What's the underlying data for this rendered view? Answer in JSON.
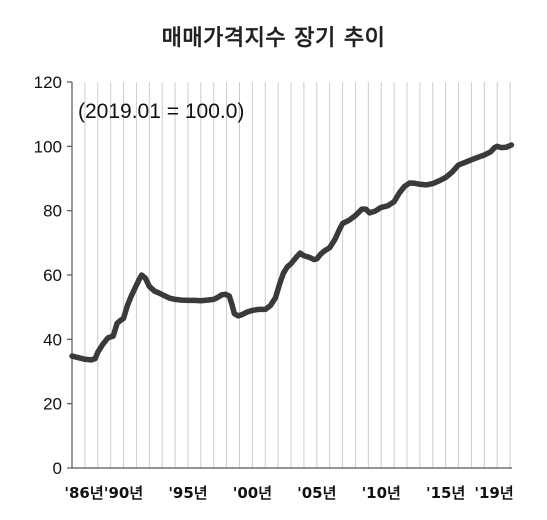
{
  "chart_data": {
    "type": "line",
    "title": "매매가격지수 장기 추이",
    "annotation": "(2019.01 = 100.0)",
    "xlabel": "",
    "ylabel": "",
    "ylim": [
      0,
      120
    ],
    "yticks": [
      0,
      20,
      40,
      60,
      80,
      100,
      120
    ],
    "xlim": [
      1986.0,
      2020.15
    ],
    "xticks": [
      {
        "label": "'86년",
        "x": 1986
      },
      {
        "label": "'90년",
        "x": 1990
      },
      {
        "label": "'95년",
        "x": 1995
      },
      {
        "label": "'00년",
        "x": 2000
      },
      {
        "label": "'05년",
        "x": 2005
      },
      {
        "label": "'10년",
        "x": 2010
      },
      {
        "label": "'15년",
        "x": 2015
      },
      {
        "label": "'19년",
        "x": 2019
      }
    ],
    "grid": {
      "vertical": true,
      "horizontal": false
    },
    "colors": {
      "line": "#3a3a3a",
      "grid": "#cccccc",
      "axis": "#555555"
    },
    "series": [
      {
        "name": "",
        "points": [
          [
            1986.0,
            34.8
          ],
          [
            1986.5,
            34.3
          ],
          [
            1987.0,
            33.8
          ],
          [
            1987.5,
            33.6
          ],
          [
            1987.8,
            34.0
          ],
          [
            1988.0,
            36.0
          ],
          [
            1988.4,
            38.5
          ],
          [
            1988.8,
            40.5
          ],
          [
            1989.2,
            41.0
          ],
          [
            1989.5,
            45.0
          ],
          [
            1989.8,
            46.0
          ],
          [
            1990.0,
            46.5
          ],
          [
            1990.3,
            50.5
          ],
          [
            1990.6,
            53.5
          ],
          [
            1990.9,
            56.0
          ],
          [
            1991.2,
            58.5
          ],
          [
            1991.4,
            60.0
          ],
          [
            1991.7,
            59.0
          ],
          [
            1992.0,
            56.5
          ],
          [
            1992.4,
            55.0
          ],
          [
            1992.8,
            54.3
          ],
          [
            1993.2,
            53.5
          ],
          [
            1993.6,
            52.8
          ],
          [
            1994.0,
            52.4
          ],
          [
            1994.5,
            52.2
          ],
          [
            1995.0,
            52.1
          ],
          [
            1995.5,
            52.1
          ],
          [
            1996.0,
            52.0
          ],
          [
            1996.5,
            52.2
          ],
          [
            1997.0,
            52.4
          ],
          [
            1997.3,
            53.0
          ],
          [
            1997.6,
            53.8
          ],
          [
            1997.9,
            54.0
          ],
          [
            1998.2,
            53.5
          ],
          [
            1998.4,
            51.0
          ],
          [
            1998.6,
            48.0
          ],
          [
            1998.9,
            47.3
          ],
          [
            1999.2,
            47.7
          ],
          [
            1999.6,
            48.5
          ],
          [
            2000.0,
            49.0
          ],
          [
            2000.5,
            49.3
          ],
          [
            2001.0,
            49.3
          ],
          [
            2001.4,
            50.5
          ],
          [
            2001.8,
            53.0
          ],
          [
            2002.1,
            57.0
          ],
          [
            2002.4,
            60.5
          ],
          [
            2002.7,
            62.5
          ],
          [
            2003.0,
            63.5
          ],
          [
            2003.4,
            65.5
          ],
          [
            2003.7,
            66.8
          ],
          [
            2004.0,
            66.0
          ],
          [
            2004.4,
            65.5
          ],
          [
            2004.8,
            64.8
          ],
          [
            2005.0,
            65.0
          ],
          [
            2005.3,
            66.5
          ],
          [
            2005.6,
            67.5
          ],
          [
            2006.0,
            68.5
          ],
          [
            2006.4,
            71.0
          ],
          [
            2006.8,
            74.5
          ],
          [
            2007.0,
            76.0
          ],
          [
            2007.5,
            77.0
          ],
          [
            2008.0,
            78.5
          ],
          [
            2008.5,
            80.5
          ],
          [
            2008.8,
            80.5
          ],
          [
            2009.1,
            79.3
          ],
          [
            2009.5,
            79.8
          ],
          [
            2010.0,
            81.0
          ],
          [
            2010.5,
            81.5
          ],
          [
            2011.0,
            82.8
          ],
          [
            2011.4,
            85.5
          ],
          [
            2011.8,
            87.5
          ],
          [
            2012.2,
            88.6
          ],
          [
            2012.6,
            88.5
          ],
          [
            2013.0,
            88.2
          ],
          [
            2013.5,
            88.0
          ],
          [
            2014.0,
            88.4
          ],
          [
            2014.5,
            89.3
          ],
          [
            2015.0,
            90.3
          ],
          [
            2015.5,
            92.0
          ],
          [
            2016.0,
            94.2
          ],
          [
            2016.5,
            95.0
          ],
          [
            2017.0,
            95.8
          ],
          [
            2017.5,
            96.6
          ],
          [
            2018.0,
            97.3
          ],
          [
            2018.5,
            98.3
          ],
          [
            2018.8,
            99.6
          ],
          [
            2019.0,
            100.0
          ],
          [
            2019.3,
            99.6
          ],
          [
            2019.7,
            99.7
          ],
          [
            2020.1,
            100.4
          ]
        ]
      }
    ]
  }
}
